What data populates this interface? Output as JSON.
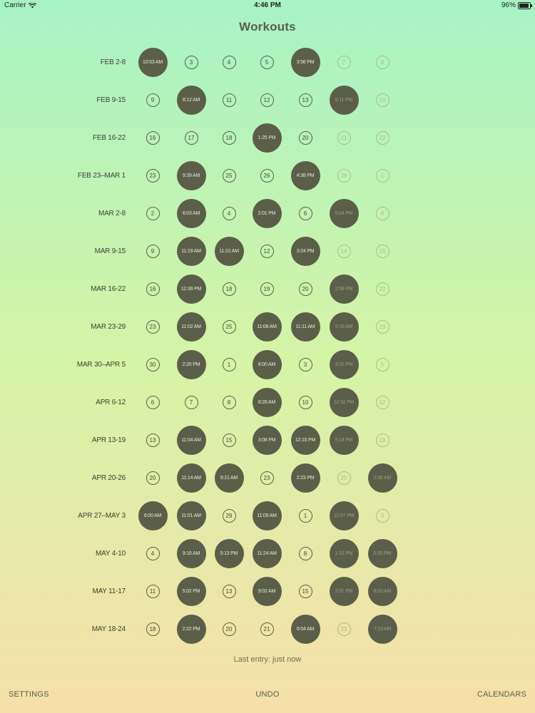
{
  "status_bar": {
    "carrier": "Carrier",
    "time": "4:46 PM",
    "battery": "96%",
    "icons": [
      "wifi-icon",
      "battery-icon"
    ]
  },
  "title": "Workouts",
  "weeks": [
    {
      "label": "FEB 2-8",
      "days": [
        {
          "text": "10:53 AM",
          "workout": true
        },
        {
          "text": "3"
        },
        {
          "text": "4"
        },
        {
          "text": "5"
        },
        {
          "text": "3:56 PM",
          "workout": true
        },
        {
          "text": "7",
          "faded": true
        },
        {
          "text": "8",
          "faded": true
        }
      ]
    },
    {
      "label": "FEB 9-15",
      "days": [
        {
          "text": "9"
        },
        {
          "text": "8:12 AM",
          "workout": true
        },
        {
          "text": "11"
        },
        {
          "text": "12"
        },
        {
          "text": "13"
        },
        {
          "text": "5:11 PM",
          "workout": true,
          "faded": true
        },
        {
          "text": "15",
          "faded": true
        }
      ]
    },
    {
      "label": "FEB 16-22",
      "days": [
        {
          "text": "16"
        },
        {
          "text": "17"
        },
        {
          "text": "18"
        },
        {
          "text": "1:25 PM",
          "workout": true
        },
        {
          "text": "20"
        },
        {
          "text": "21",
          "faded": true
        },
        {
          "text": "22",
          "faded": true
        }
      ]
    },
    {
      "label": "FEB 23–MAR 1",
      "days": [
        {
          "text": "23"
        },
        {
          "text": "9:39 AM",
          "workout": true
        },
        {
          "text": "25"
        },
        {
          "text": "26"
        },
        {
          "text": "4:38 PM",
          "workout": true
        },
        {
          "text": "28",
          "faded": true
        },
        {
          "text": "1",
          "faded": true
        }
      ]
    },
    {
      "label": "MAR 2-8",
      "days": [
        {
          "text": "2"
        },
        {
          "text": "6:03 AM",
          "workout": true
        },
        {
          "text": "4"
        },
        {
          "text": "2:01 PM",
          "workout": true
        },
        {
          "text": "6"
        },
        {
          "text": "5:04 PM",
          "workout": true,
          "faded": true
        },
        {
          "text": "8",
          "faded": true
        }
      ]
    },
    {
      "label": "MAR 9-15",
      "days": [
        {
          "text": "9"
        },
        {
          "text": "11:19 AM",
          "workout": true
        },
        {
          "text": "11:22 AM",
          "workout": true
        },
        {
          "text": "12"
        },
        {
          "text": "3:24 PM",
          "workout": true
        },
        {
          "text": "14",
          "faded": true
        },
        {
          "text": "15",
          "faded": true
        }
      ]
    },
    {
      "label": "MAR 16-22",
      "days": [
        {
          "text": "16"
        },
        {
          "text": "12:39 PM",
          "workout": true
        },
        {
          "text": "18"
        },
        {
          "text": "19"
        },
        {
          "text": "20"
        },
        {
          "text": "2:08 PM",
          "workout": true,
          "faded": true
        },
        {
          "text": "22",
          "faded": true
        }
      ]
    },
    {
      "label": "MAR 23-29",
      "days": [
        {
          "text": "23"
        },
        {
          "text": "11:02 AM",
          "workout": true
        },
        {
          "text": "25"
        },
        {
          "text": "11:08 AM",
          "workout": true
        },
        {
          "text": "11:11 AM",
          "workout": true
        },
        {
          "text": "9:16 AM",
          "workout": true,
          "faded": true
        },
        {
          "text": "29",
          "faded": true
        }
      ]
    },
    {
      "label": "MAR 30–APR 5",
      "days": [
        {
          "text": "30"
        },
        {
          "text": "2:20 PM",
          "workout": true
        },
        {
          "text": "1"
        },
        {
          "text": "8:00 AM",
          "workout": true
        },
        {
          "text": "3"
        },
        {
          "text": "3:01 PM",
          "workout": true,
          "faded": true
        },
        {
          "text": "5",
          "faded": true
        }
      ]
    },
    {
      "label": "APR 6-12",
      "days": [
        {
          "text": "6"
        },
        {
          "text": "7"
        },
        {
          "text": "8"
        },
        {
          "text": "8:28 AM",
          "workout": true
        },
        {
          "text": "10"
        },
        {
          "text": "12:32 PM",
          "workout": true,
          "faded": true
        },
        {
          "text": "12",
          "faded": true
        }
      ]
    },
    {
      "label": "APR 13-19",
      "days": [
        {
          "text": "13"
        },
        {
          "text": "11:04 AM",
          "workout": true
        },
        {
          "text": "15"
        },
        {
          "text": "3:08 PM",
          "workout": true
        },
        {
          "text": "12:15 PM",
          "workout": true
        },
        {
          "text": "5:14 PM",
          "workout": true,
          "faded": true
        },
        {
          "text": "19",
          "faded": true
        }
      ]
    },
    {
      "label": "APR 20-26",
      "days": [
        {
          "text": "20"
        },
        {
          "text": "11:14 AM",
          "workout": true
        },
        {
          "text": "8:21 AM",
          "workout": true
        },
        {
          "text": "23"
        },
        {
          "text": "2:23 PM",
          "workout": true
        },
        {
          "text": "25",
          "faded": true
        },
        {
          "text": "2:38 AM",
          "workout": true,
          "faded": true
        }
      ]
    },
    {
      "label": "APR 27–MAY 3",
      "days": [
        {
          "text": "8:00 AM",
          "workout": true
        },
        {
          "text": "11:01 AM",
          "workout": true
        },
        {
          "text": "29"
        },
        {
          "text": "11:09 AM",
          "workout": true
        },
        {
          "text": "1"
        },
        {
          "text": "12:57 PM",
          "workout": true,
          "faded": true
        },
        {
          "text": "3",
          "faded": true
        }
      ]
    },
    {
      "label": "MAY 4-10",
      "days": [
        {
          "text": "4"
        },
        {
          "text": "9:16 AM",
          "workout": true
        },
        {
          "text": "5:13 PM",
          "workout": true
        },
        {
          "text": "11:24 AM",
          "workout": true
        },
        {
          "text": "8"
        },
        {
          "text": "1:32 PM",
          "workout": true,
          "faded": true
        },
        {
          "text": "5:33 PM",
          "workout": true,
          "faded": true
        }
      ]
    },
    {
      "label": "MAY 11-17",
      "days": [
        {
          "text": "11"
        },
        {
          "text": "5:02 PM",
          "workout": true
        },
        {
          "text": "13"
        },
        {
          "text": "9:02 AM",
          "workout": true
        },
        {
          "text": "15"
        },
        {
          "text": "2:07 PM",
          "workout": true,
          "faded": true
        },
        {
          "text": "8:10 AM",
          "workout": true,
          "faded": true
        }
      ]
    },
    {
      "label": "MAY 18-24",
      "days": [
        {
          "text": "18"
        },
        {
          "text": "2:22 PM",
          "workout": true
        },
        {
          "text": "20"
        },
        {
          "text": "21"
        },
        {
          "text": "6:04 AM",
          "workout": true
        },
        {
          "text": "23",
          "faded": true
        },
        {
          "text": "7:13 AM",
          "workout": true,
          "faded": true
        }
      ]
    }
  ],
  "last_entry": "Last entry: just now",
  "bottom_bar": {
    "settings": "SETTINGS",
    "undo": "UNDO",
    "calendars": "CALENDARS"
  }
}
